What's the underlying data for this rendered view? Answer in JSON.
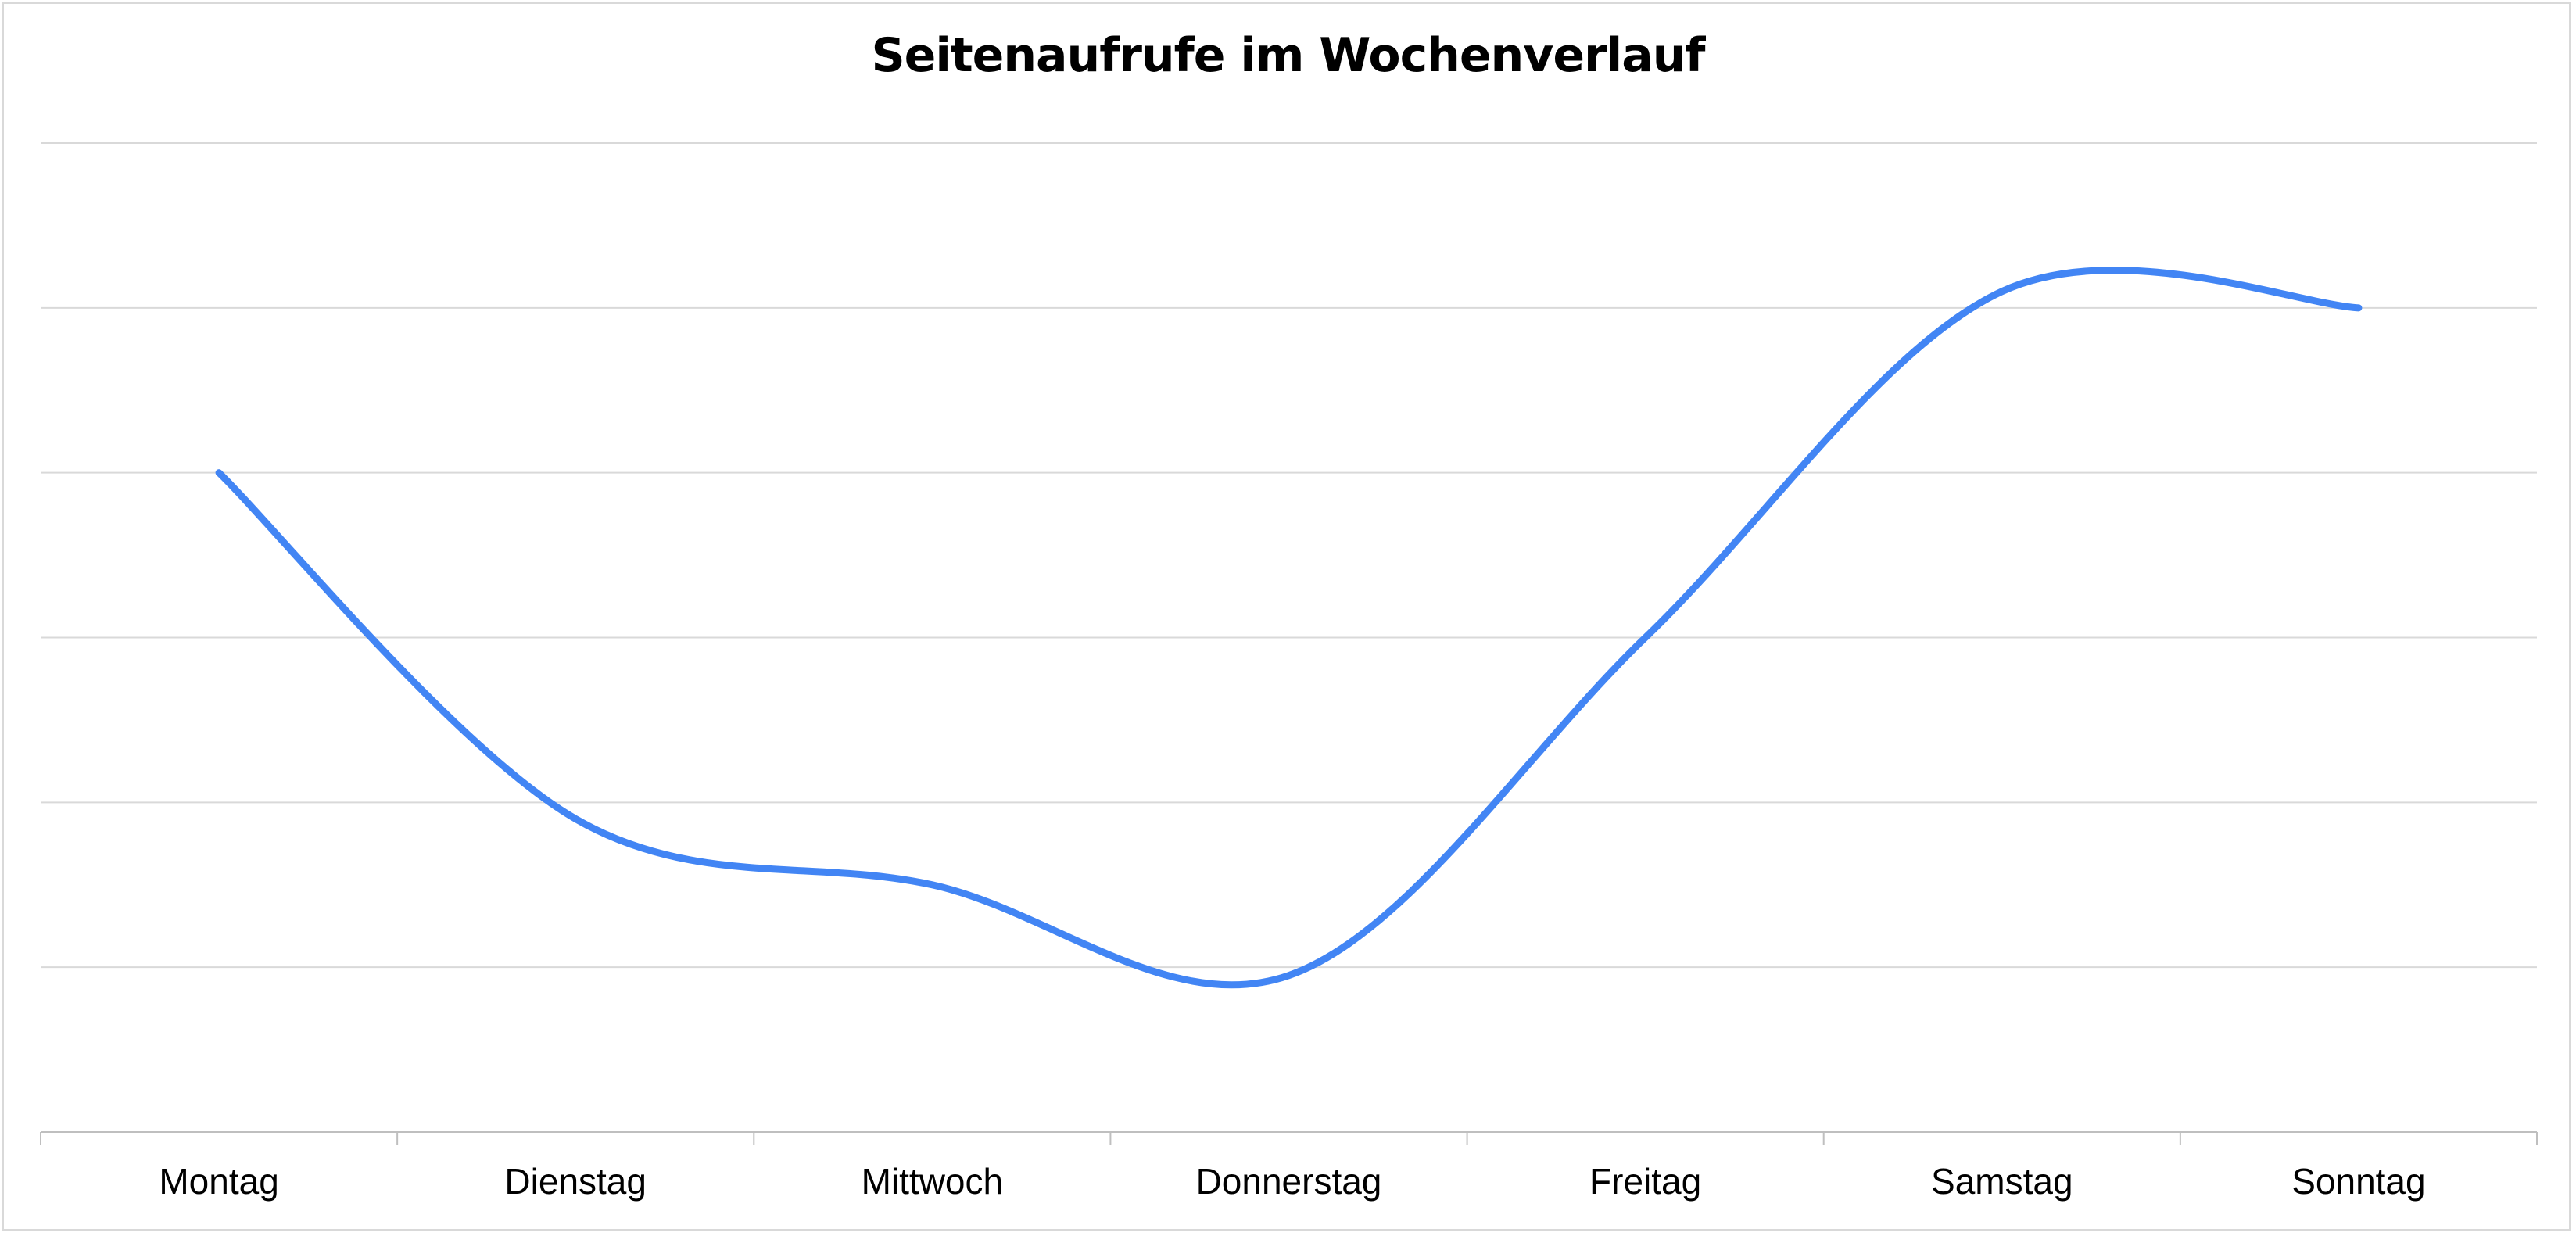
{
  "chart_data": {
    "type": "line",
    "title": "Seitenaufrufe im Wochenverlauf",
    "xlabel": "",
    "ylabel": "",
    "categories": [
      "Montag",
      "Dienstag",
      "Mittwoch",
      "Donnerstag",
      "Freitag",
      "Samstag",
      "Sonntag"
    ],
    "series": [
      {
        "values": [
          4.0,
          1.9,
          1.5,
          0.95,
          3.0,
          5.1,
          5.0
        ]
      }
    ],
    "ylim": [
      0,
      6
    ],
    "grid": true,
    "show_y_tick_labels": false,
    "smooth": true,
    "colors": {
      "line": "#4285F4",
      "grid": "#d9d9d9",
      "axis": "#bfbfbf"
    }
  }
}
